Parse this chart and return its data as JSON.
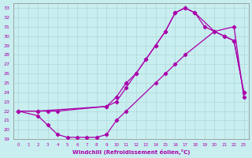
{
  "xlabel": "Windchill (Refroidissement éolien,°C)",
  "xlim": [
    -0.5,
    23.5
  ],
  "ylim": [
    19,
    33.5
  ],
  "yticks": [
    19,
    20,
    21,
    22,
    23,
    24,
    25,
    26,
    27,
    28,
    29,
    30,
    31,
    32,
    33
  ],
  "xticks": [
    0,
    1,
    2,
    3,
    4,
    5,
    6,
    7,
    8,
    9,
    10,
    11,
    12,
    13,
    14,
    15,
    16,
    17,
    18,
    19,
    20,
    21,
    22,
    23
  ],
  "bg_color": "#c8eef0",
  "grid_color": "#b0d8d8",
  "line_color": "#aa00aa",
  "line1_x": [
    0,
    2,
    3,
    4,
    5,
    6,
    7,
    8,
    9,
    10,
    11,
    14,
    15,
    16,
    17,
    20,
    22,
    23
  ],
  "line1_y": [
    22,
    21.5,
    20.5,
    19.5,
    19.2,
    19.2,
    19.2,
    19.2,
    19.5,
    21.0,
    22.0,
    25.0,
    26.0,
    27.0,
    28.0,
    30.5,
    31.0,
    23.5
  ],
  "line2_x": [
    0,
    2,
    3,
    4,
    9,
    10,
    11,
    12,
    13,
    14,
    15,
    16,
    17,
    18,
    20,
    21,
    22,
    23
  ],
  "line2_y": [
    22,
    22,
    22,
    22,
    22.5,
    23.5,
    25.0,
    26.0,
    27.5,
    29.0,
    30.5,
    32.5,
    33.0,
    32.5,
    30.5,
    30.0,
    29.5,
    24.0
  ],
  "line3_x": [
    0,
    2,
    9,
    10,
    11,
    12,
    13,
    14,
    15,
    16,
    17,
    18,
    19,
    20,
    21,
    22,
    23
  ],
  "line3_y": [
    22,
    22,
    22.5,
    23.0,
    24.5,
    26.0,
    27.5,
    29.0,
    30.5,
    32.5,
    33.0,
    32.5,
    31.0,
    30.5,
    30.0,
    29.5,
    24.0
  ]
}
